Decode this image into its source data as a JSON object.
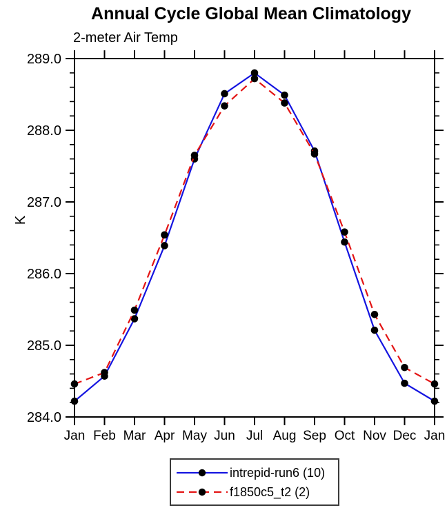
{
  "chart_data": {
    "type": "line",
    "title": "Annual Cycle Global Mean Climatology",
    "subtitle": "2-meter Air Temp",
    "ylabel": "K",
    "xlabel": "",
    "categories": [
      "Jan",
      "Feb",
      "Mar",
      "Apr",
      "May",
      "Jun",
      "Jul",
      "Aug",
      "Sep",
      "Oct",
      "Nov",
      "Dec",
      "Jan"
    ],
    "ylim": [
      284.0,
      289.0
    ],
    "ytick_major_step": 1.0,
    "ytick_minor_step": 0.2,
    "ytick_labels": [
      "284.0",
      "285.0",
      "286.0",
      "287.0",
      "288.0",
      "289.0"
    ],
    "grid": false,
    "legend_position": "bottom-center",
    "axis_color": "#000000",
    "marker_color": "#000000",
    "series": [
      {
        "name": "intrepid-run6 (10)",
        "color": "#1414e0",
        "line_style": "solid",
        "marker": "circle",
        "values": [
          284.22,
          284.57,
          285.37,
          286.39,
          287.6,
          288.51,
          288.8,
          288.49,
          287.71,
          286.44,
          285.21,
          284.47,
          284.22
        ]
      },
      {
        "name": "f1850c5_t2 (2)",
        "color": "#e31414",
        "line_style": "dashed",
        "marker": "circle",
        "values": [
          284.46,
          284.62,
          285.49,
          286.54,
          287.65,
          288.34,
          288.72,
          288.38,
          287.67,
          286.58,
          285.43,
          284.69,
          284.46
        ]
      }
    ]
  }
}
